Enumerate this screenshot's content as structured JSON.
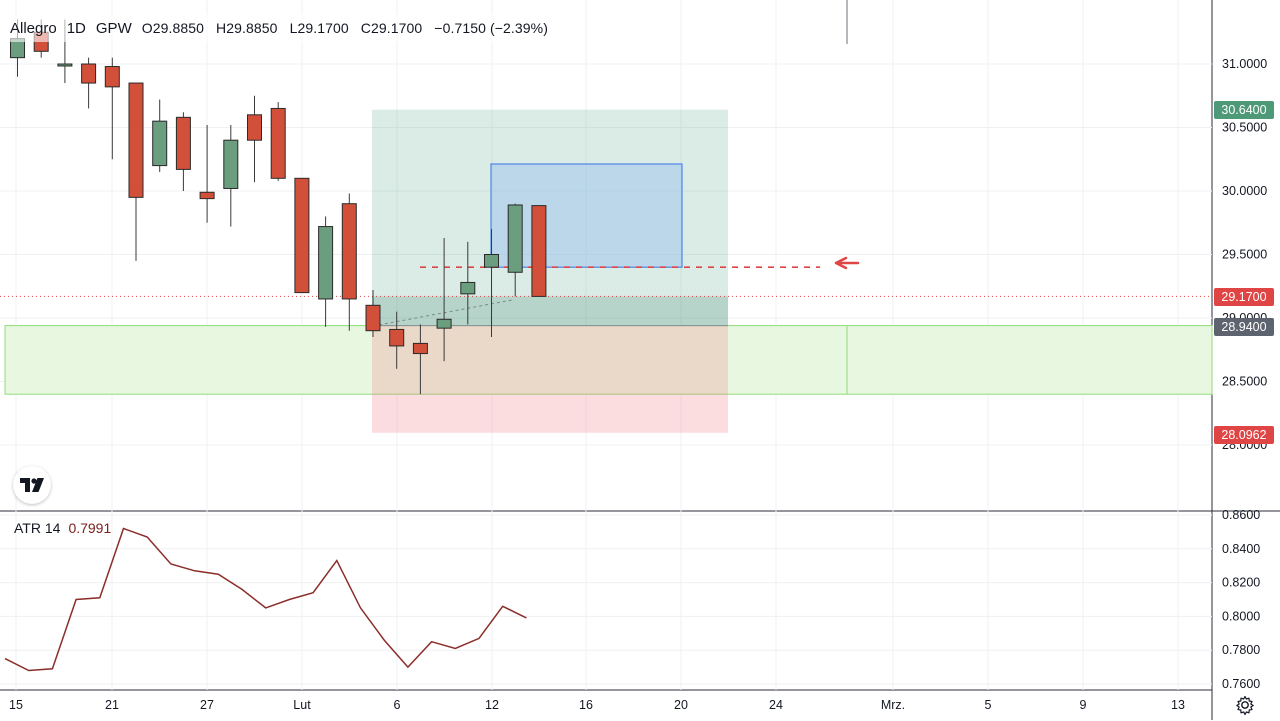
{
  "header": {
    "symbol": "Allegro",
    "timeframe": "1D",
    "exchange": "GPW",
    "open": "O29.8850",
    "high": "H29.8850",
    "low": "L29.1700",
    "close": "C29.1700",
    "change": "−0.7150 (−2.39%)"
  },
  "price_tags": {
    "target": "30.6400",
    "current": "29.1700",
    "entry": "28.9400",
    "stop": "28.0962"
  },
  "atr": {
    "label": "ATR 14",
    "value": "0.7991"
  },
  "colors": {
    "up": "#6a9e7f",
    "down": "#d2503a",
    "atr_line": "#8b2e2a",
    "target_tag": "#4e9a78",
    "stop_tag": "#e04545",
    "entry_tag": "#5d6470",
    "support_zone": "#e8f8e0",
    "forecast_box": "#b6d4f0"
  },
  "icons": {
    "logo": "tradingview-logo-icon",
    "settings": "gear-icon",
    "arrow": "arrow-left-icon"
  },
  "chart_data": [
    {
      "type": "candlestick",
      "x_tick_labels": [
        "15",
        "21",
        "27",
        "Lut",
        "6",
        "12",
        "16",
        "20",
        "24",
        "Mrz.",
        "5",
        "9",
        "13"
      ],
      "y_ticks": [
        "31.0000",
        "30.5000",
        "30.0000",
        "29.5000",
        "29.0000",
        "28.5000",
        "28.0000"
      ],
      "ylim": [
        27.75,
        31.35
      ],
      "candles": [
        {
          "o": 31.05,
          "h": 31.35,
          "l": 30.9,
          "c": 31.2
        },
        {
          "o": 31.25,
          "h": 31.35,
          "l": 31.05,
          "c": 31.1
        },
        {
          "o": 31.0,
          "h": 31.35,
          "l": 30.85,
          "c": 31.0
        },
        {
          "o": 31.0,
          "h": 31.05,
          "l": 30.65,
          "c": 30.85
        },
        {
          "o": 30.98,
          "h": 31.05,
          "l": 30.25,
          "c": 30.82
        },
        {
          "o": 30.85,
          "h": 30.85,
          "l": 29.45,
          "c": 29.95
        },
        {
          "o": 30.2,
          "h": 30.72,
          "l": 30.15,
          "c": 30.55
        },
        {
          "o": 30.58,
          "h": 30.62,
          "l": 30.0,
          "c": 30.17
        },
        {
          "o": 29.99,
          "h": 30.52,
          "l": 29.75,
          "c": 29.94
        },
        {
          "o": 30.02,
          "h": 30.52,
          "l": 29.72,
          "c": 30.4
        },
        {
          "o": 30.6,
          "h": 30.75,
          "l": 30.07,
          "c": 30.4
        },
        {
          "o": 30.65,
          "h": 30.7,
          "l": 30.08,
          "c": 30.1
        },
        {
          "o": 30.1,
          "h": 30.1,
          "l": 29.2,
          "c": 29.2
        },
        {
          "o": 29.15,
          "h": 29.8,
          "l": 28.93,
          "c": 29.72
        },
        {
          "o": 29.9,
          "h": 29.98,
          "l": 28.9,
          "c": 29.15
        },
        {
          "o": 29.1,
          "h": 29.22,
          "l": 28.85,
          "c": 28.9
        },
        {
          "o": 28.91,
          "h": 29.05,
          "l": 28.6,
          "c": 28.78
        },
        {
          "o": 28.8,
          "h": 28.95,
          "l": 28.4,
          "c": 28.72
        },
        {
          "o": 28.92,
          "h": 29.63,
          "l": 28.66,
          "c": 28.99
        },
        {
          "o": 29.19,
          "h": 29.6,
          "l": 28.95,
          "c": 29.28
        },
        {
          "o": 29.4,
          "h": 29.7,
          "l": 28.85,
          "c": 29.5
        },
        {
          "o": 29.36,
          "h": 29.9,
          "l": 29.17,
          "c": 29.89
        },
        {
          "o": 29.885,
          "h": 29.885,
          "l": 29.17,
          "c": 29.17
        }
      ],
      "annotations": {
        "support_zone": [
          28.4,
          28.94
        ],
        "long_position": {
          "target": 30.64,
          "entry": 28.94,
          "stop": 28.0962
        },
        "forecast_box": [
          29.4,
          30.2
        ],
        "projection_level": 29.4,
        "last_price": 29.17
      }
    },
    {
      "type": "line",
      "title": "ATR 14",
      "y_ticks": [
        "0.8600",
        "0.8400",
        "0.8200",
        "0.8000",
        "0.7800",
        "0.7600"
      ],
      "ylim": [
        0.76,
        0.86
      ],
      "values": [
        0.775,
        0.768,
        0.769,
        0.81,
        0.811,
        0.852,
        0.847,
        0.831,
        0.827,
        0.825,
        0.816,
        0.805,
        0.81,
        0.814,
        0.833,
        0.805,
        0.786,
        0.77,
        0.785,
        0.781,
        0.787,
        0.806,
        0.7991
      ]
    }
  ]
}
